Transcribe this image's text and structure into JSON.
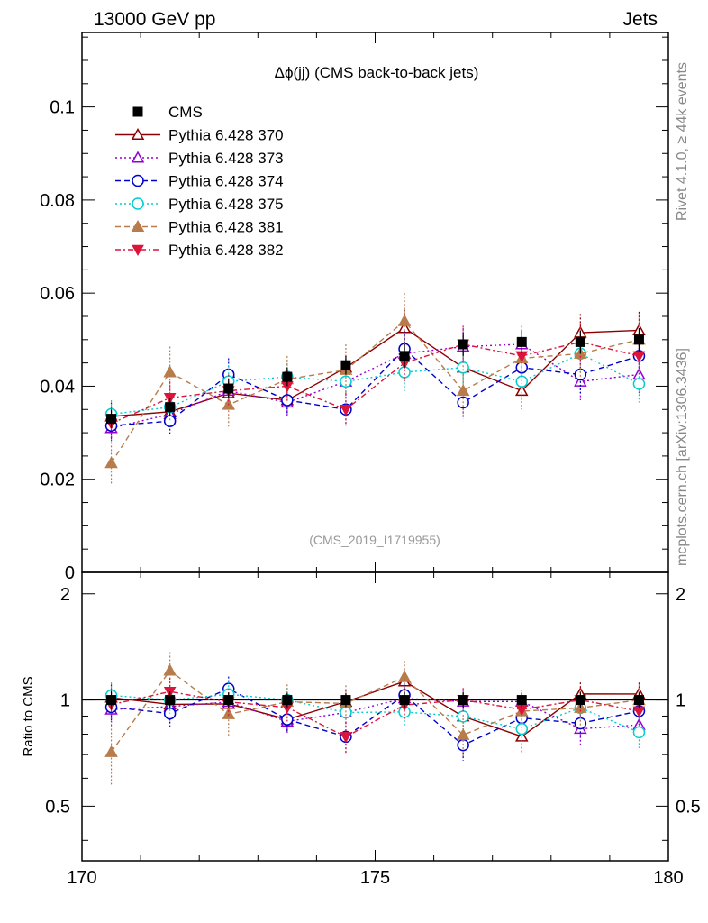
{
  "header": {
    "energy_label": "13000 GeV pp",
    "process_label": "Jets"
  },
  "side_text": {
    "rivet": "Rivet 4.1.0, ≥ 44k events",
    "mcplots": "mcplots.cern.ch [arXiv:1306.3436]"
  },
  "chart_data": {
    "type": "scatter",
    "title": "Δϕ(jj) (CMS back-to-back jets)",
    "analysis_id": "(CMS_2019_I1719955)",
    "x": [
      170.5,
      171.5,
      172.5,
      173.5,
      174.5,
      175.5,
      176.5,
      177.5,
      178.5,
      179.5
    ],
    "xlim": [
      170,
      180
    ],
    "x_ticks": [
      "170",
      "175",
      "180"
    ],
    "main_ylim": [
      0,
      0.116
    ],
    "main_y_ticks": [
      "0",
      "0.02",
      "0.04",
      "0.06",
      "0.08",
      "0.1"
    ],
    "ratio_ylabel": "Ratio to CMS",
    "ratio_ylim": [
      0.35,
      2.3
    ],
    "ratio_y_ticks": [
      "0.5",
      "1",
      "2"
    ],
    "ratio_y_ticks_right": [
      "0.5",
      "1",
      "2"
    ],
    "data": {
      "name": "CMS",
      "color": "#000000",
      "values": [
        0.033,
        0.0355,
        0.0395,
        0.042,
        0.0445,
        0.0465,
        0.049,
        0.0495,
        0.0495,
        0.05
      ],
      "errors": [
        0.002,
        0.002,
        0.002,
        0.002,
        0.002,
        0.0025,
        0.0025,
        0.0025,
        0.0025,
        0.0025
      ]
    },
    "series": [
      {
        "name": "Pythia 6.428 370",
        "color": "#8b0000",
        "dash": "",
        "marker": "triangle-open",
        "values": [
          0.0335,
          0.0345,
          0.0385,
          0.037,
          0.044,
          0.0525,
          0.044,
          0.039,
          0.0515,
          0.052
        ],
        "errors": [
          0.003,
          0.003,
          0.003,
          0.003,
          0.0035,
          0.004,
          0.004,
          0.004,
          0.004,
          0.004
        ]
      },
      {
        "name": "Pythia 6.428 373",
        "color": "#9400d3",
        "dash": "2,3",
        "marker": "triangle-open",
        "values": [
          0.031,
          0.034,
          0.039,
          0.0365,
          0.041,
          0.047,
          0.0485,
          0.049,
          0.041,
          0.0425
        ],
        "errors": [
          0.003,
          0.003,
          0.003,
          0.003,
          0.0035,
          0.004,
          0.004,
          0.004,
          0.004,
          0.004
        ]
      },
      {
        "name": "Pythia 6.428 374",
        "color": "#0000cd",
        "dash": "6,4",
        "marker": "circle-open",
        "values": [
          0.0315,
          0.0325,
          0.0425,
          0.037,
          0.035,
          0.048,
          0.0365,
          0.044,
          0.0425,
          0.0465
        ],
        "errors": [
          0.003,
          0.003,
          0.0035,
          0.003,
          0.0035,
          0.004,
          0.0035,
          0.004,
          0.004,
          0.004
        ]
      },
      {
        "name": "Pythia 6.428 375",
        "color": "#00ced1",
        "dash": "2,3",
        "marker": "circle-open",
        "values": [
          0.034,
          0.0355,
          0.041,
          0.042,
          0.041,
          0.043,
          0.044,
          0.041,
          0.047,
          0.0405
        ],
        "errors": [
          0.003,
          0.003,
          0.0035,
          0.0035,
          0.0035,
          0.004,
          0.004,
          0.004,
          0.004,
          0.004
        ]
      },
      {
        "name": "Pythia 6.428 381",
        "color": "#b87c4c",
        "dash": "6,4",
        "marker": "triangle-filled",
        "values": [
          0.0235,
          0.043,
          0.036,
          0.0415,
          0.0435,
          0.054,
          0.039,
          0.046,
          0.047,
          0.05
        ],
        "errors": [
          0.0045,
          0.0055,
          0.005,
          0.005,
          0.0055,
          0.006,
          0.0055,
          0.0055,
          0.0055,
          0.0055
        ]
      },
      {
        "name": "Pythia 6.428 382",
        "color": "#dc143c",
        "dash": "6,3,2,3",
        "marker": "triangle-down-filled",
        "values": [
          0.032,
          0.0375,
          0.039,
          0.04,
          0.035,
          0.045,
          0.049,
          0.0465,
          0.0495,
          0.0465
        ],
        "errors": [
          0.0035,
          0.0035,
          0.0035,
          0.0035,
          0.0035,
          0.004,
          0.004,
          0.004,
          0.004,
          0.004
        ]
      }
    ]
  }
}
